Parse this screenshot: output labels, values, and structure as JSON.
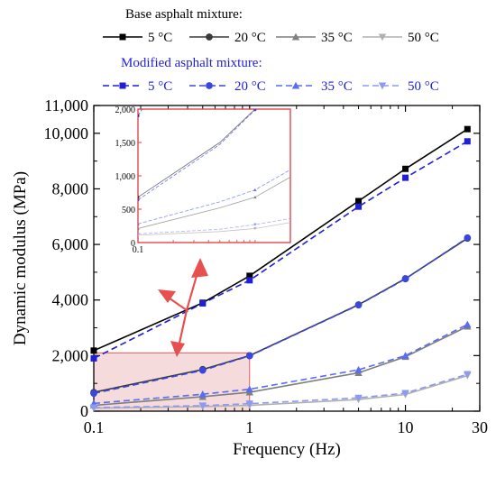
{
  "chart_data": {
    "type": "line",
    "xlabel": "Frequency (Hz)",
    "ylabel": "Dynamic modulus (MPa)",
    "xscale": "log",
    "xlim": [
      0.1,
      30
    ],
    "ylim": [
      0,
      11000
    ],
    "xticks": [
      {
        "value": 0.1,
        "label": "0.1"
      },
      {
        "value": 1,
        "label": "1"
      },
      {
        "value": 10,
        "label": "10"
      },
      {
        "value": 30,
        "label": "30"
      }
    ],
    "yticks": [
      {
        "value": 0,
        "label": "0"
      },
      {
        "value": 2000,
        "label": "2,000"
      },
      {
        "value": 4000,
        "label": "4,000"
      },
      {
        "value": 6000,
        "label": "6,000"
      },
      {
        "value": 8000,
        "label": "8,000"
      },
      {
        "value": 10000,
        "label": "10,000"
      },
      {
        "value": 11000,
        "label": "11,000"
      }
    ],
    "legend": {
      "placement": "top",
      "groups": [
        {
          "title": "Base asphalt mixture:",
          "entries": [
            "5 °C",
            "20 °C",
            "35 °C",
            "50 °C"
          ]
        },
        {
          "title": "Modified asphalt mixture:",
          "entries": [
            "5 °C",
            "20 °C",
            "35 °C",
            "50 °C"
          ]
        }
      ]
    },
    "x": [
      0.1,
      0.5,
      1,
      5,
      10,
      25
    ],
    "series": [
      {
        "group": "Base asphalt mixture",
        "name": "5 °C",
        "marker": "square",
        "color": "#000000",
        "dash": "solid",
        "values": [
          2180,
          3900,
          4870,
          7560,
          8720,
          10150
        ]
      },
      {
        "group": "Base asphalt mixture",
        "name": "20 °C",
        "marker": "circle",
        "color": "#3a3a3a",
        "dash": "solid",
        "values": [
          680,
          1500,
          2000,
          3830,
          4770,
          6220
        ]
      },
      {
        "group": "Base asphalt mixture",
        "name": "35 °C",
        "marker": "triangle-up",
        "color": "#7f7f7f",
        "dash": "solid",
        "values": [
          210,
          520,
          680,
          1380,
          1960,
          3050
        ]
      },
      {
        "group": "Base asphalt mixture",
        "name": "50 °C",
        "marker": "triangle-down",
        "color": "#b0b0b0",
        "dash": "solid",
        "values": [
          110,
          165,
          210,
          420,
          600,
          1280
        ]
      },
      {
        "group": "Modified asphalt mixture",
        "name": "5 °C",
        "marker": "square",
        "color": "#1f1fd6",
        "dash": "dashed",
        "values": [
          1900,
          3880,
          4710,
          7360,
          8400,
          9710
        ]
      },
      {
        "group": "Modified asphalt mixture",
        "name": "20 °C",
        "marker": "circle",
        "color": "#3a46e0",
        "dash": "dashed",
        "values": [
          640,
          1470,
          1990,
          3820,
          4760,
          6240
        ]
      },
      {
        "group": "Modified asphalt mixture",
        "name": "35 °C",
        "marker": "triangle-up",
        "color": "#5a6cf0",
        "dash": "dashed",
        "values": [
          280,
          610,
          790,
          1490,
          2000,
          3120
        ]
      },
      {
        "group": "Modified asphalt mixture",
        "name": "50 °C",
        "marker": "triangle-down",
        "color": "#8c9af5",
        "dash": "dashed",
        "values": [
          130,
          200,
          270,
          480,
          650,
          1330
        ]
      }
    ],
    "inset": {
      "xlim": [
        0.1,
        2
      ],
      "ylim": [
        0,
        2000
      ],
      "xticks": [
        {
          "value": 0.1,
          "label": "0.1"
        }
      ],
      "yticks": [
        {
          "value": 0,
          "label": "0"
        },
        {
          "value": 500,
          "label": "500"
        },
        {
          "value": 1000,
          "label": "1,000"
        },
        {
          "value": 1500,
          "label": "1,500"
        },
        {
          "value": 2000,
          "label": "2,000"
        }
      ],
      "highlight_region": {
        "x": [
          0.1,
          1
        ],
        "y": [
          0,
          2100
        ]
      },
      "frame_color": "#e0393f",
      "highlight_fill": "#f3d5d5",
      "arrow_color": "#e85050"
    }
  }
}
